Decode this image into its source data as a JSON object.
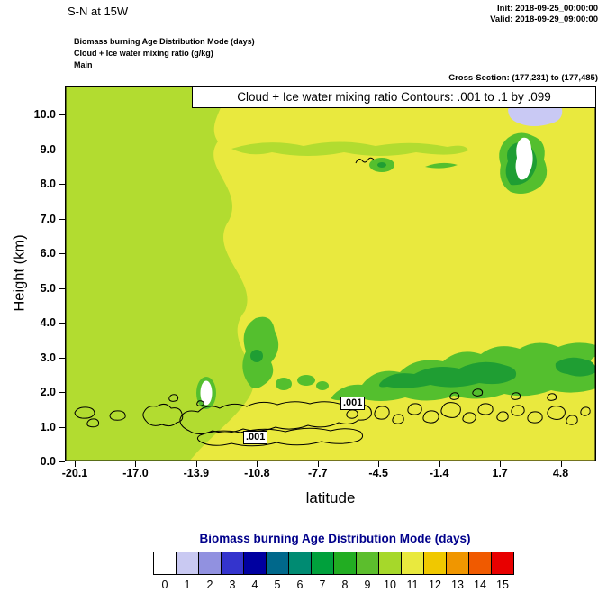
{
  "header": {
    "title": "S-N at 15W",
    "init_label": "Init: 2018-09-25_00:00:00",
    "valid_label": "Valid: 2018-09-29_09:00:00",
    "field_lines": [
      "Biomass burning Age Distribution Mode   (days)",
      "Cloud + Ice water mixing ratio   (g/kg)",
      "Main"
    ],
    "cross_section": "Cross-Section: (177,231) to (177,485)"
  },
  "plot": {
    "contour_info": "Cloud + Ice water mixing ratio Contours: .001 to .1 by .099",
    "ylabel": "Height (km)",
    "xlabel": "latitude",
    "contour_labels": [
      ".001",
      ".001"
    ]
  },
  "chart_data": {
    "type": "heatmap",
    "title": "S-N at 15W",
    "xlabel": "latitude",
    "ylabel": "Height (km)",
    "x_ticks": [
      "-20.1",
      "-17.0",
      "-13.9",
      "-10.8",
      "-7.7",
      "-4.5",
      "-1.4",
      "1.7",
      "4.8"
    ],
    "y_ticks": [
      "0.0",
      "1.0",
      "2.0",
      "3.0",
      "4.0",
      "5.0",
      "6.0",
      "7.0",
      "8.0",
      "9.0",
      "10.0"
    ],
    "xlim_approx": [
      -20.6,
      6.3
    ],
    "ylim_approx": [
      0,
      10.8
    ],
    "grid": false,
    "cross_section": "(177,231) to (177,485)",
    "contour_overlay": {
      "field": "Cloud + Ice water mixing ratio (g/kg)",
      "levels_text": ".001 to .1 by .099",
      "levels": [
        0.001,
        0.1
      ],
      "label": ".001",
      "features": "closed black contour loops mostly between 0.5 and 2.1 km across nearly all latitudes; long elongated loop from about lat -14 to -5 near 1-1.7 km; clusters of small loops from lat -5 to 5; tiny squiggle near lat -5.3 at 8.6 km"
    },
    "fill_field": {
      "name": "Biomass burning Age Distribution Mode (days)",
      "units": "days",
      "dominant_values": {
        "left_half": 10,
        "right_half": 11
      },
      "regions": [
        {
          "approx_value": 10,
          "color": "#b2dc30",
          "where": "lat -20.6 to about -12 at all heights; wavy band near 8.8-9.2 km from lat -12 to -1.5"
        },
        {
          "approx_value": 11,
          "color": "#e9e93e",
          "where": "lat -12 to 6.3 from surface to top (10.8 km)"
        },
        {
          "approx_value": 8,
          "color": "#54bf2e",
          "where": "mottled band 2.0-3.7 km from lat -7 to 6.3; vertical blob near lat -11 at 2.6-4.2 km; patches near 8.3-8.7 km at lat -5 to -3.7 and -2 to -0.8; ring near lat 2-4 at 7.8-9.8 km"
        },
        {
          "approx_value": 7,
          "color": "#1f9e33",
          "where": "dark green cores 2.1-2.9 km from lat -4.8 to 2.2 and near right edge 2.4-3 km; small core near lat -11 at 3 km; core near lat 3 at 8.2-8.6 km"
        },
        {
          "approx_value": 0,
          "color": "#ffffff",
          "where": "white spot near lat -13.6 at 1.6-2.3 km; vertical white spot near lat 2.9 at 8.0-9.5 km"
        },
        {
          "approx_value": 1,
          "color": "#c9c9f4",
          "where": "lavender patch near lat 1.8-4.3 at 10.0-10.5 km"
        }
      ]
    },
    "colorbar": {
      "title": "Biomass burning Age Distribution Mode  (days)",
      "title_color": "#00008b",
      "labels": [
        "0",
        "1",
        "2",
        "3",
        "4",
        "5",
        "6",
        "7",
        "8",
        "9",
        "10",
        "11",
        "12",
        "13",
        "14",
        "15"
      ],
      "colors": [
        "#ffffff",
        "#c9c9f2",
        "#9191e0",
        "#3434cd",
        "#0000a0",
        "#00688b",
        "#008b72",
        "#00a03c",
        "#22ad22",
        "#5cbe2d",
        "#a6d82a",
        "#e9e93e",
        "#f0c800",
        "#f09600",
        "#f05a00",
        "#e80000"
      ]
    }
  }
}
